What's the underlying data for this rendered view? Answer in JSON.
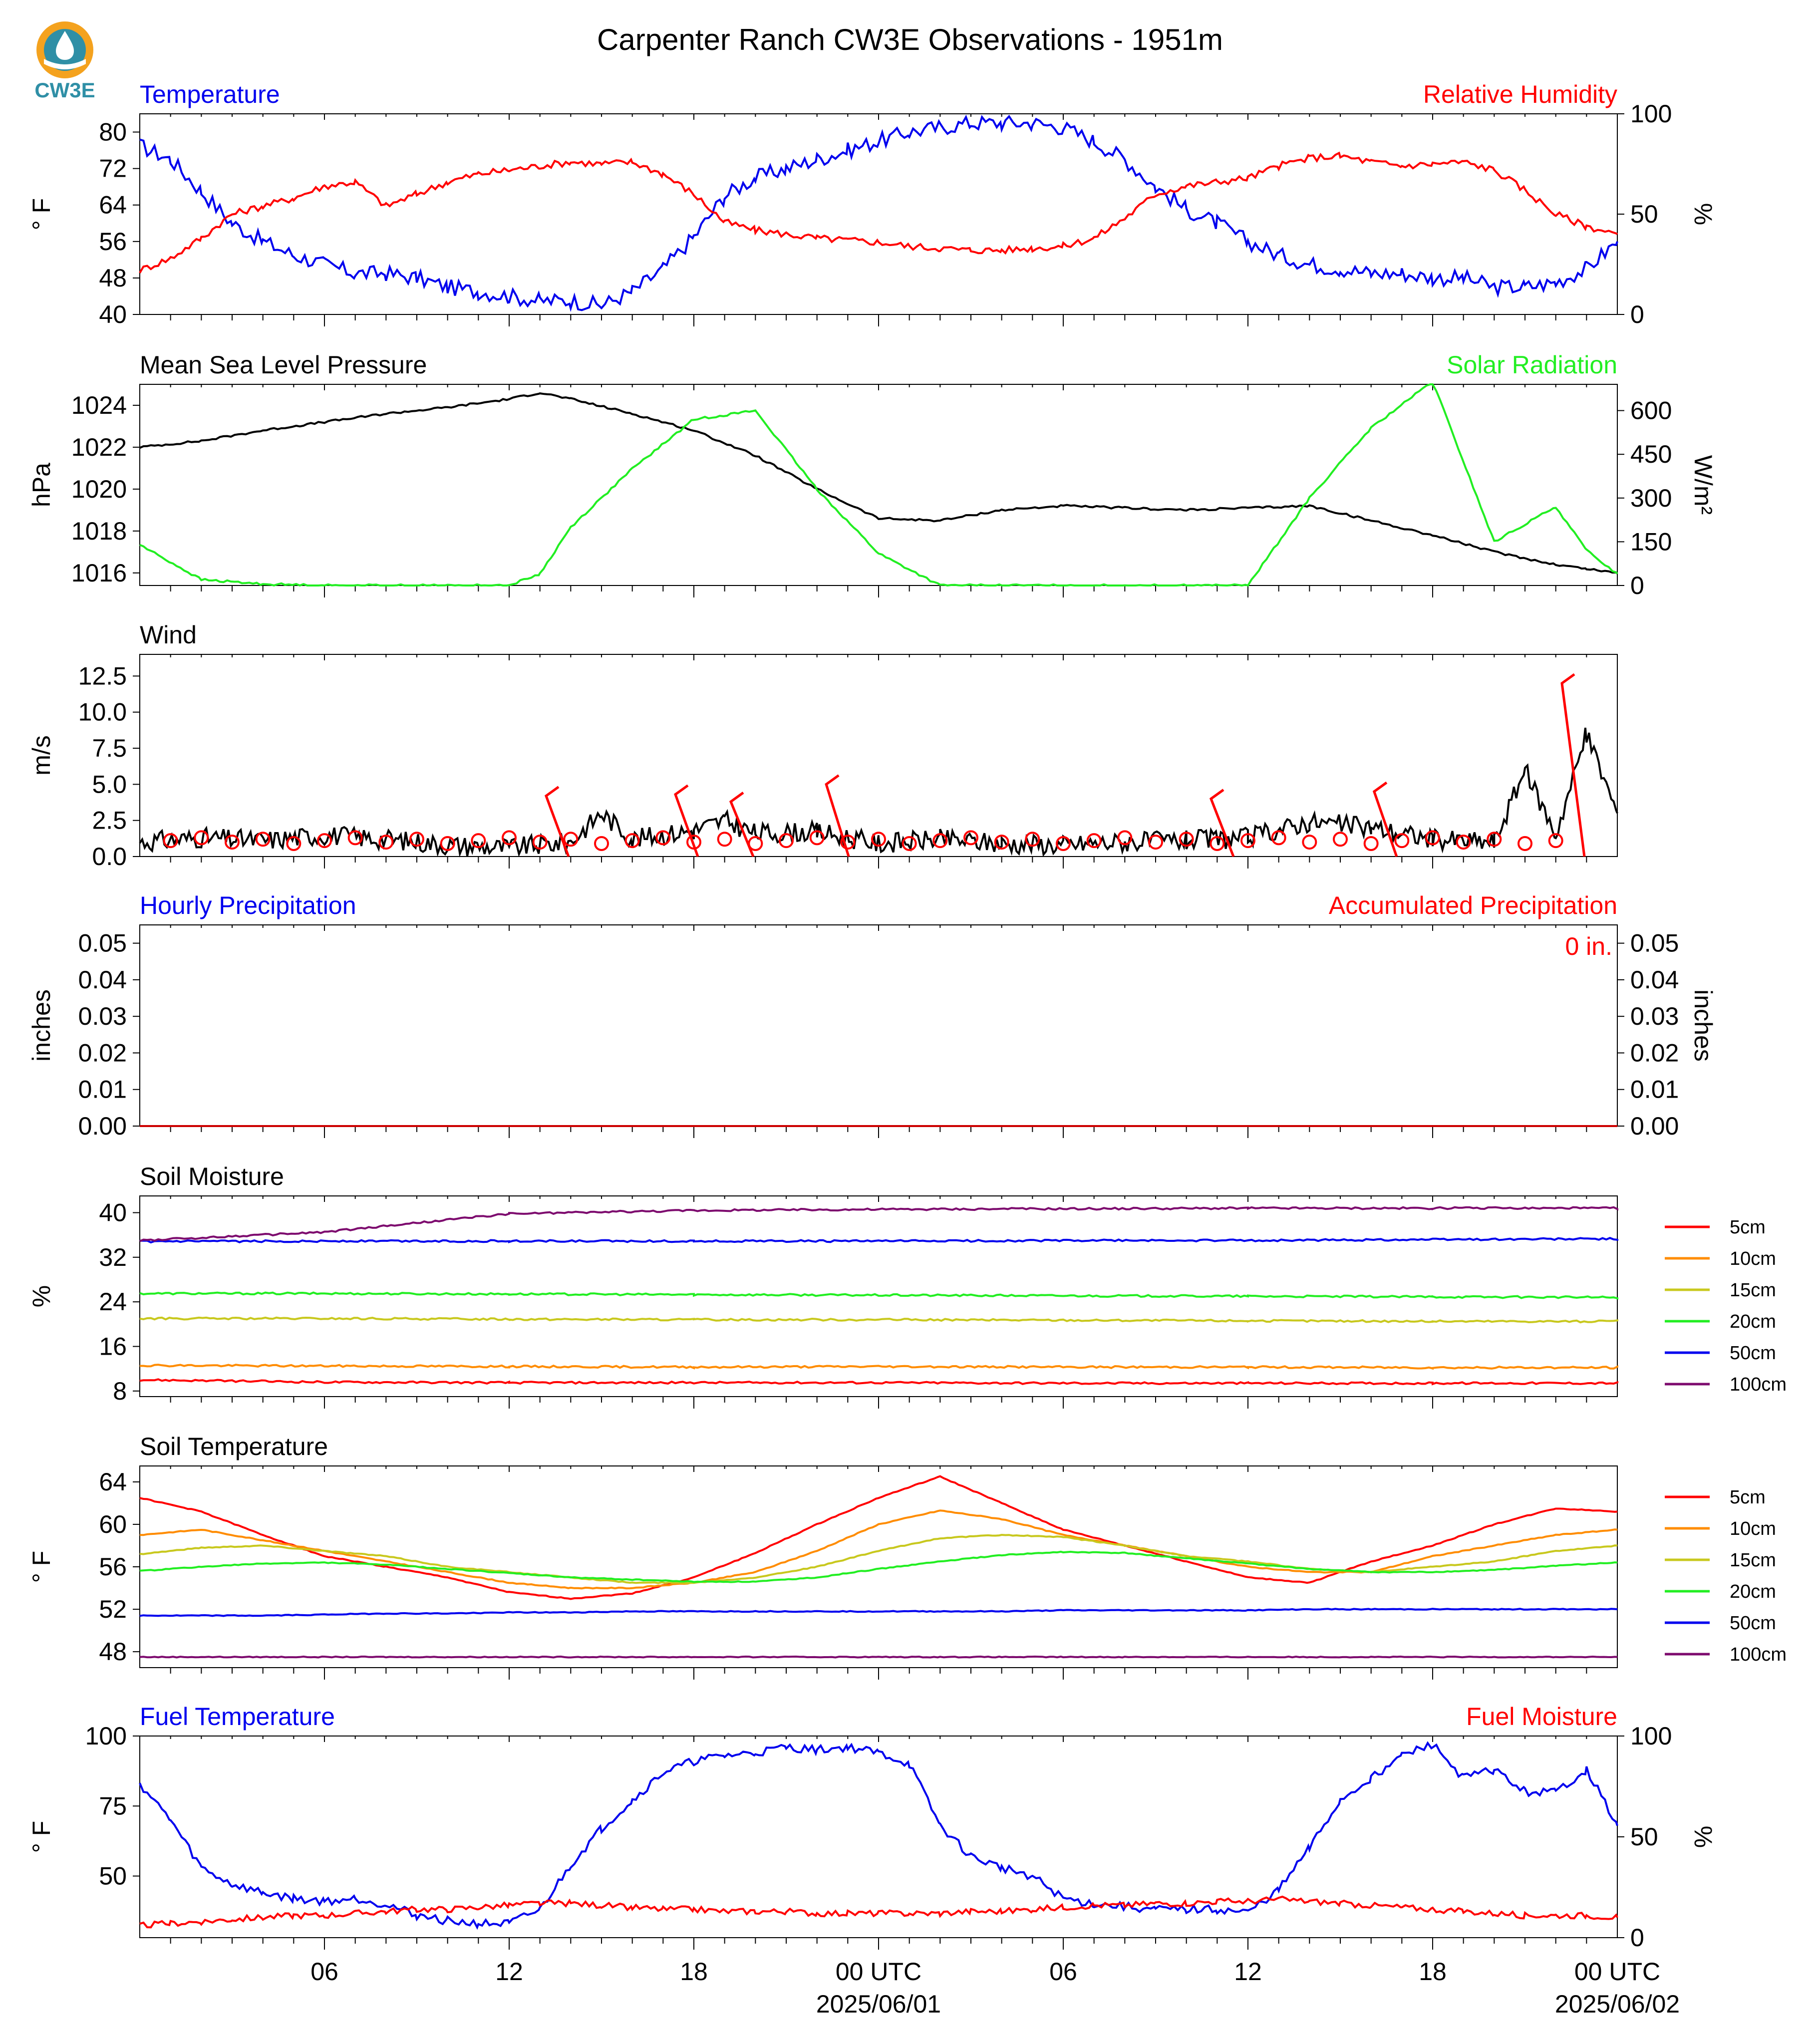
{
  "logo": {
    "text": "CW3E",
    "color": "#2f8fa6",
    "accent": "#f4a21e"
  },
  "title": "Carpenter Ranch CW3E Observations - 1951m",
  "x_axis": {
    "tick_labels": [
      "06",
      "12",
      "18",
      "00 UTC",
      "06",
      "12",
      "18",
      "00 UTC"
    ],
    "date_labels": [
      "2025/06/01",
      "2025/06/02"
    ]
  },
  "colors": {
    "red": "#ff0000",
    "blue": "#0000ee",
    "green": "#22ee22",
    "black": "#000000",
    "orange": "#ff8c00",
    "olive": "#c8c81e",
    "purple": "#7d0a6e"
  },
  "chart_data": [
    {
      "type": "line",
      "title_left": "Temperature",
      "title_right": "Relative Humidity",
      "ylabel_left": "° F",
      "ylabel_right": "%",
      "ylim_left": [
        40,
        84
      ],
      "yticks_left": [
        "40",
        "48",
        "56",
        "64",
        "72",
        "80"
      ],
      "ylim_right": [
        0,
        100
      ],
      "yticks_right": [
        "0",
        "50",
        "100"
      ],
      "x_hours": [
        0,
        1,
        2,
        3,
        4,
        5,
        6,
        7,
        8,
        9,
        10,
        11,
        12,
        13,
        14,
        15,
        16,
        17,
        18,
        19,
        20,
        21,
        22,
        23,
        24,
        25,
        26,
        27,
        28,
        29,
        30,
        31,
        32,
        33,
        34,
        35,
        36,
        37,
        38,
        39,
        40,
        41,
        42,
        43,
        44,
        45,
        46,
        47,
        48
      ],
      "series": [
        {
          "axis": "left",
          "color": "#0000ee",
          "values": [
            77,
            74,
            67,
            60,
            56,
            53,
            51,
            49,
            49,
            48,
            46,
            45,
            44,
            43,
            43,
            42,
            45,
            50,
            57,
            66,
            70,
            72,
            74,
            76,
            78,
            80,
            81,
            82,
            82,
            82,
            81,
            78,
            74,
            68,
            63,
            60,
            56,
            53,
            51,
            50,
            49,
            49,
            48,
            48,
            46,
            46,
            47,
            50,
            56
          ]
        },
        {
          "axis": "right",
          "color": "#ff0000",
          "values": [
            22,
            28,
            38,
            50,
            54,
            58,
            64,
            66,
            54,
            60,
            66,
            70,
            72,
            74,
            76,
            75,
            76,
            70,
            60,
            46,
            42,
            40,
            38,
            37,
            36,
            34,
            33,
            32,
            32,
            33,
            34,
            38,
            48,
            60,
            64,
            66,
            68,
            74,
            78,
            79,
            76,
            74,
            75,
            76,
            72,
            62,
            50,
            44,
            40
          ]
        }
      ]
    },
    {
      "type": "line",
      "title_left": "Mean Sea Level Pressure",
      "title_right": "Solar Radiation",
      "ylabel_left": "hPa",
      "ylabel_right": "W/m²",
      "ylim_left": [
        1015.4,
        1025.0
      ],
      "yticks_left": [
        "1016",
        "1018",
        "1020",
        "1022",
        "1024"
      ],
      "ylim_right": [
        0,
        690
      ],
      "yticks_right": [
        "0",
        "150",
        "300",
        "450",
        "600"
      ],
      "x_hours": [
        0,
        2,
        4,
        6,
        8,
        10,
        12,
        13,
        14,
        16,
        18,
        20,
        22,
        24,
        26,
        28,
        30,
        32,
        34,
        36,
        38,
        40,
        42,
        44,
        46,
        47,
        48
      ],
      "series": [
        {
          "axis": "left",
          "color": "#000000",
          "values": [
            1022.0,
            1022.3,
            1022.8,
            1023.2,
            1023.6,
            1023.9,
            1024.3,
            1024.6,
            1024.3,
            1023.6,
            1022.8,
            1021.6,
            1020.0,
            1018.6,
            1018.5,
            1019.0,
            1019.2,
            1019.1,
            1019.0,
            1019.1,
            1019.2,
            1018.5,
            1017.8,
            1017.0,
            1016.4,
            1016.2,
            1016.0
          ]
        },
        {
          "axis": "right",
          "color": "#22ee22",
          "values": [
            140,
            20,
            5,
            0,
            0,
            0,
            0,
            40,
            200,
            400,
            570,
            600,
            330,
            110,
            0,
            0,
            0,
            0,
            0,
            0,
            300,
            540,
            700,
            150,
            270,
            120,
            40
          ]
        }
      ]
    },
    {
      "type": "line",
      "title_left": "Wind",
      "ylabel_left": "m/s",
      "ylim_left": [
        0,
        14
      ],
      "yticks_left": [
        "0.0",
        "2.5",
        "5.0",
        "7.5",
        "10.0",
        "12.5"
      ],
      "x_hours": [
        0,
        2,
        4,
        6,
        8,
        10,
        12,
        14,
        15,
        16,
        18,
        19,
        20,
        22,
        24,
        26,
        28,
        30,
        32,
        34,
        36,
        38,
        40,
        42,
        44,
        45,
        46,
        47,
        48
      ],
      "series": [
        {
          "axis": "left",
          "color": "#000000",
          "values": [
            1.0,
            1.3,
            1.1,
            1.5,
            1.2,
            0.8,
            0.6,
            1.0,
            3.0,
            1.2,
            1.8,
            2.5,
            1.6,
            1.7,
            0.9,
            1.2,
            0.9,
            0.8,
            1.0,
            1.1,
            1.3,
            2.4,
            2.0,
            1.2,
            1.0,
            6.0,
            1.5,
            8.5,
            3.0
          ]
        }
      ]
    },
    {
      "type": "bar",
      "title_left": "Hourly Precipitation",
      "title_right": "Accumulated Precipitation",
      "ylabel_left": "inches",
      "ylabel_right": "inches",
      "ylim_left": [
        0,
        0.055
      ],
      "yticks_left": [
        "0.00",
        "0.01",
        "0.02",
        "0.03",
        "0.04",
        "0.05"
      ],
      "ylim_right": [
        0,
        0.055
      ],
      "yticks_right": [
        "0.00",
        "0.01",
        "0.02",
        "0.03",
        "0.04",
        "0.05"
      ],
      "accumulated_label": "0 in.",
      "hourly_values": [
        0
      ],
      "accumulated_values": [
        0
      ]
    },
    {
      "type": "line",
      "title_left": "Soil Moisture",
      "ylabel_left": "%",
      "ylim_left": [
        7,
        43
      ],
      "yticks_left": [
        "8",
        "16",
        "24",
        "32",
        "40"
      ],
      "legend": [
        "5cm",
        "10cm",
        "15cm",
        "20cm",
        "50cm",
        "100cm"
      ],
      "x_hours": [
        0,
        6,
        12,
        18,
        24,
        30,
        36,
        42,
        48
      ],
      "series": [
        {
          "name": "5cm",
          "color": "#ff0000",
          "values": [
            10.0,
            9.6,
            9.5,
            9.5,
            9.5,
            9.4,
            9.4,
            9.4,
            9.4
          ]
        },
        {
          "name": "10cm",
          "color": "#ff8c00",
          "values": [
            12.6,
            12.5,
            12.4,
            12.3,
            12.4,
            12.3,
            12.3,
            12.2,
            12.2
          ]
        },
        {
          "name": "15cm",
          "color": "#c8c81e",
          "values": [
            21.0,
            21.0,
            20.9,
            20.8,
            20.8,
            20.7,
            20.6,
            20.5,
            20.5
          ]
        },
        {
          "name": "20cm",
          "color": "#22ee22",
          "values": [
            25.5,
            25.5,
            25.4,
            25.3,
            25.2,
            25.1,
            25.0,
            24.9,
            24.8
          ]
        },
        {
          "name": "50cm",
          "color": "#0000ee",
          "values": [
            34.8,
            34.9,
            34.9,
            34.9,
            34.9,
            35.0,
            35.0,
            35.2,
            35.3
          ]
        },
        {
          "name": "100cm",
          "color": "#7d0a6e",
          "values": [
            35.0,
            36.5,
            39.8,
            40.4,
            40.6,
            40.7,
            40.8,
            40.8,
            40.8
          ]
        }
      ]
    },
    {
      "type": "line",
      "title_left": "Soil Temperature",
      "ylabel_left": "° F",
      "ylim_left": [
        46.5,
        65.5
      ],
      "yticks_left": [
        "48",
        "52",
        "56",
        "60",
        "64"
      ],
      "legend": [
        "5cm",
        "10cm",
        "15cm",
        "20cm",
        "50cm",
        "100cm"
      ],
      "x_hours": [
        0,
        2,
        4,
        6,
        8,
        10,
        12,
        14,
        16,
        18,
        20,
        22,
        24,
        26,
        28,
        30,
        32,
        34,
        36,
        38,
        40,
        42,
        44,
        46,
        48
      ],
      "series": [
        {
          "name": "5cm",
          "color": "#ff0000",
          "values": [
            62.5,
            61.2,
            59.0,
            57.0,
            56.0,
            55.0,
            53.6,
            53.0,
            53.5,
            55.0,
            57.3,
            60.0,
            62.5,
            64.5,
            62.0,
            59.5,
            58.0,
            56.5,
            55.0,
            54.5,
            56.5,
            58.0,
            60.0,
            61.5,
            61.2
          ]
        },
        {
          "name": "10cm",
          "color": "#ff8c00",
          "values": [
            59.0,
            59.5,
            58.5,
            57.5,
            56.5,
            55.5,
            54.5,
            54.0,
            54.0,
            54.5,
            55.5,
            57.5,
            60.0,
            61.3,
            60.5,
            59.0,
            58.0,
            57.0,
            56.0,
            55.5,
            55.5,
            57.0,
            58.0,
            59.0,
            59.5
          ]
        },
        {
          "name": "15cm",
          "color": "#c8c81e",
          "values": [
            57.2,
            57.8,
            58.0,
            57.5,
            57.0,
            56.0,
            55.5,
            55.0,
            54.5,
            54.5,
            55.0,
            56.0,
            57.5,
            58.7,
            59.0,
            58.8,
            58.0,
            57.0,
            56.5,
            55.8,
            55.5,
            56.0,
            56.5,
            57.5,
            58.0
          ]
        },
        {
          "name": "20cm",
          "color": "#22ee22",
          "values": [
            55.6,
            56.0,
            56.3,
            56.4,
            56.2,
            55.8,
            55.4,
            55.0,
            54.8,
            54.6,
            54.6,
            55.0,
            55.8,
            56.5,
            57.1,
            57.4,
            57.3,
            56.8,
            56.3,
            55.8,
            55.5,
            55.5,
            55.7,
            56.1,
            56.4
          ]
        },
        {
          "name": "50cm",
          "color": "#0000ee",
          "values": [
            51.4,
            51.4,
            51.4,
            51.5,
            51.6,
            51.6,
            51.7,
            51.7,
            51.8,
            51.8,
            51.8,
            51.8,
            51.8,
            51.8,
            51.8,
            51.9,
            51.9,
            51.9,
            51.9,
            52.0,
            52.0,
            52.0,
            52.0,
            52.0,
            52.0
          ]
        },
        {
          "name": "100cm",
          "color": "#7d0a6e",
          "values": [
            47.5,
            47.5,
            47.5,
            47.5,
            47.5,
            47.5,
            47.5,
            47.5,
            47.5,
            47.5,
            47.5,
            47.5,
            47.5,
            47.5,
            47.5,
            47.5,
            47.5,
            47.5,
            47.5,
            47.5,
            47.5,
            47.5,
            47.5,
            47.5,
            47.5
          ]
        }
      ]
    },
    {
      "type": "line",
      "title_left": "Fuel Temperature",
      "title_right": "Fuel Moisture",
      "ylabel_left": "° F",
      "ylabel_right": "%",
      "ylim_left": [
        28,
        100
      ],
      "yticks_left": [
        "50",
        "75",
        "100"
      ],
      "ylim_right": [
        0,
        100
      ],
      "yticks_right": [
        "0",
        "50",
        "100"
      ],
      "x_hours": [
        0,
        1,
        2,
        3,
        4,
        5,
        6,
        7,
        8,
        9,
        10,
        11,
        12,
        13,
        14,
        15,
        16,
        17,
        18,
        19,
        20,
        21,
        22,
        23,
        24,
        25,
        26,
        27,
        28,
        29,
        30,
        31,
        32,
        33,
        34,
        35,
        36,
        37,
        38,
        39,
        40,
        41,
        42,
        43,
        44,
        45,
        46,
        47,
        48
      ],
      "series": [
        {
          "axis": "left",
          "color": "#0000ee",
          "values": [
            83,
            70,
            53,
            47,
            44,
            42,
            41,
            42,
            40,
            36,
            34,
            33,
            33,
            38,
            54,
            67,
            77,
            87,
            91,
            93,
            94,
            96,
            95,
            96,
            94,
            90,
            68,
            57,
            53,
            50,
            42,
            40,
            39,
            38,
            38,
            38,
            37,
            45,
            60,
            77,
            85,
            93,
            97,
            85,
            88,
            80,
            80,
            88,
            68
          ]
        },
        {
          "axis": "right",
          "color": "#ff0000",
          "values": [
            6,
            7,
            8,
            9,
            10,
            11,
            11,
            12,
            13,
            14,
            14,
            15,
            16,
            17,
            17,
            16,
            15,
            14,
            14,
            13,
            13,
            13,
            12,
            12,
            12,
            12,
            12,
            13,
            13,
            14,
            15,
            16,
            16,
            17,
            17,
            18,
            18,
            19,
            18,
            17,
            16,
            15,
            14,
            13,
            12,
            11,
            11,
            11,
            10
          ]
        }
      ]
    }
  ]
}
